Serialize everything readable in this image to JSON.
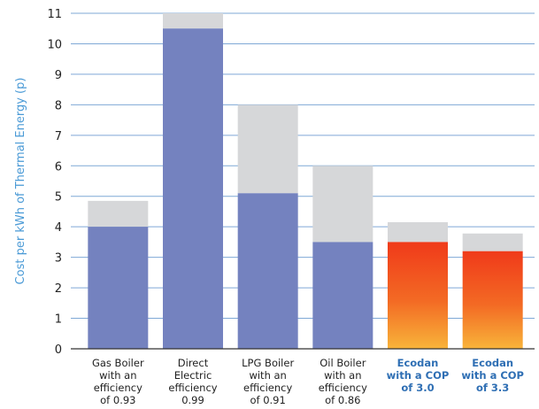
{
  "chart_data": {
    "type": "bar",
    "stacked": true,
    "ylabel": "Cost per kWh of Thermal Energy (p)",
    "ylim": [
      0,
      11
    ],
    "yticks": [
      0,
      1,
      2,
      3,
      4,
      5,
      6,
      7,
      8,
      9,
      10,
      11
    ],
    "grid": true,
    "categories": [
      "Gas Boiler\nwith an\nefficiency\nof 0.93",
      "Direct\nElectric\nefficiency\n0.99",
      "LPG Boiler\nwith an\nefficiency\nof 0.91",
      "Oil Boiler\nwith an\nefficiency\nof 0.86",
      "Ecodan\nwith a COP\nof 3.0",
      "Ecodan\nwith a COP\nof 3.3"
    ],
    "category_bold": [
      false,
      false,
      false,
      false,
      true,
      true
    ],
    "series": [
      {
        "values": [
          4.0,
          10.5,
          5.1,
          3.5,
          3.5,
          3.2
        ]
      },
      {
        "values": [
          0.85,
          0.5,
          2.9,
          2.5,
          0.65,
          0.58
        ]
      }
    ],
    "colors": {
      "base": "#7482bf",
      "range": "#d6d7d9",
      "grid": "#7fa8d6",
      "ecodan_top": "#f03a1a",
      "ecodan_bottom": "#f8b43a"
    }
  }
}
